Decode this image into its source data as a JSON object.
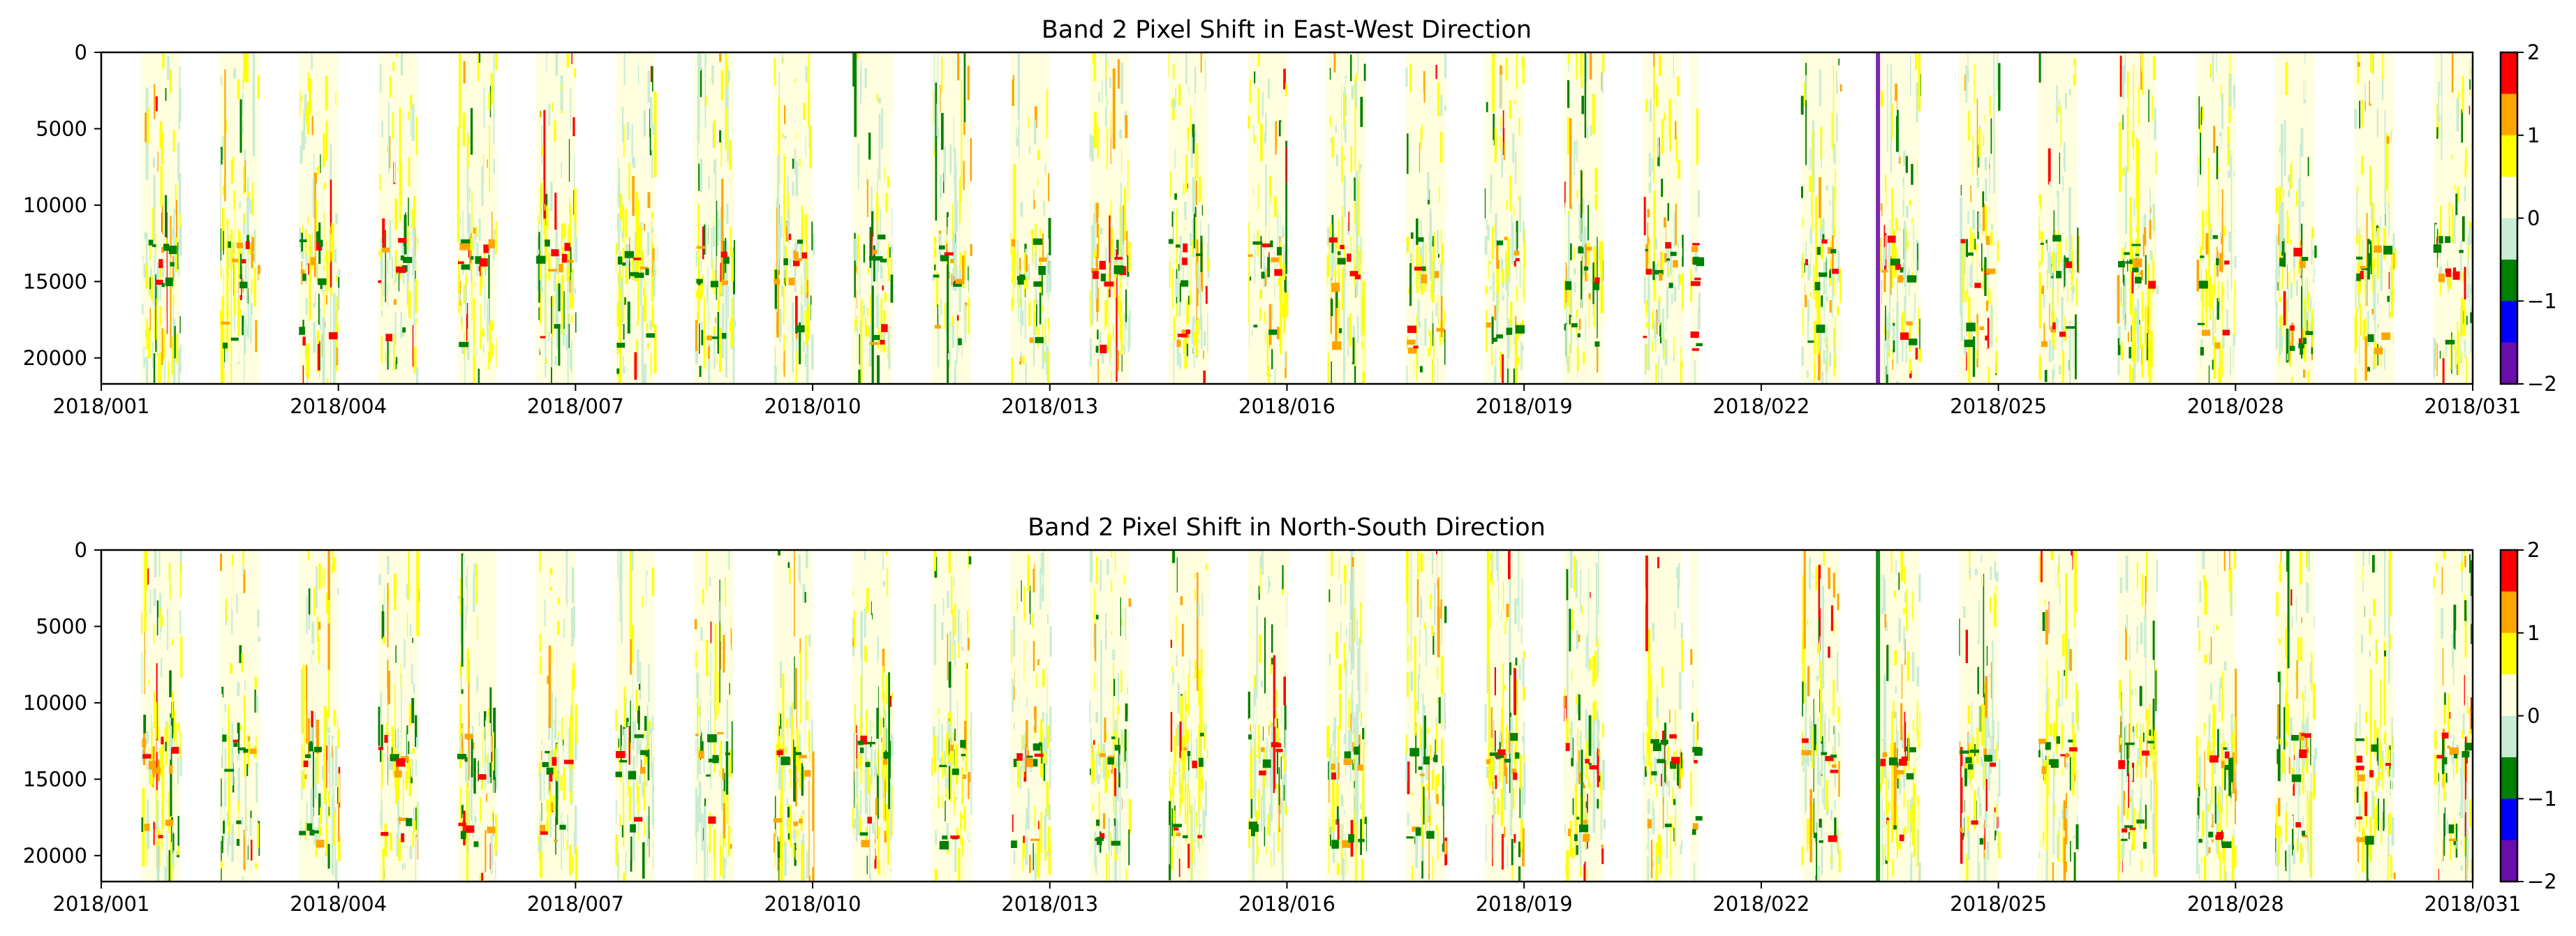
{
  "chart_data": [
    {
      "type": "heatmap",
      "title": "Band 2 Pixel Shift in East-West Direction",
      "xlabel": "",
      "ylabel": "",
      "x_ticks": [
        "2018/001",
        "2018/004",
        "2018/007",
        "2018/010",
        "2018/013",
        "2018/016",
        "2018/019",
        "2018/022",
        "2018/025",
        "2018/028",
        "2018/031"
      ],
      "x_range_days": [
        1,
        31
      ],
      "y_ticks": [
        0,
        5000,
        10000,
        15000,
        20000
      ],
      "y_range": [
        0,
        21700
      ],
      "y_inverted": true,
      "day_bands": [
        {
          "day": 1,
          "start": 1.5,
          "end": 2.0
        },
        {
          "day": 2,
          "start": 2.5,
          "end": 3.0
        },
        {
          "day": 3,
          "start": 3.5,
          "end": 4.0
        },
        {
          "day": 4,
          "start": 4.5,
          "end": 5.0
        },
        {
          "day": 5,
          "start": 5.5,
          "end": 6.0
        },
        {
          "day": 6,
          "start": 6.5,
          "end": 7.0
        },
        {
          "day": 7,
          "start": 7.5,
          "end": 8.0
        },
        {
          "day": 8,
          "start": 8.5,
          "end": 9.0
        },
        {
          "day": 9,
          "start": 9.5,
          "end": 10.0
        },
        {
          "day": 10,
          "start": 10.5,
          "end": 11.0
        },
        {
          "day": 11,
          "start": 11.5,
          "end": 12.0
        },
        {
          "day": 12,
          "start": 12.5,
          "end": 13.0
        },
        {
          "day": 13,
          "start": 13.5,
          "end": 14.0
        },
        {
          "day": 14,
          "start": 14.5,
          "end": 15.0
        },
        {
          "day": 15,
          "start": 15.5,
          "end": 16.0
        },
        {
          "day": 16,
          "start": 16.5,
          "end": 17.0
        },
        {
          "day": 17,
          "start": 17.5,
          "end": 18.0
        },
        {
          "day": 18,
          "start": 18.5,
          "end": 19.0
        },
        {
          "day": 19,
          "start": 19.5,
          "end": 20.0
        },
        {
          "day": 20,
          "start": 20.5,
          "end": 21.0
        },
        {
          "day": 21,
          "start": 21.1,
          "end": 21.2
        },
        {
          "day": 22,
          "start": 22.5,
          "end": 23.0
        },
        {
          "day": 23,
          "start": 23.5,
          "end": 24.0
        },
        {
          "day": 24,
          "start": 24.5,
          "end": 25.0
        },
        {
          "day": 25,
          "start": 25.5,
          "end": 26.0
        },
        {
          "day": 26,
          "start": 26.5,
          "end": 27.0
        },
        {
          "day": 27,
          "start": 27.5,
          "end": 28.0
        },
        {
          "day": 28,
          "start": 28.5,
          "end": 29.0
        },
        {
          "day": 29,
          "start": 29.5,
          "end": 30.0
        },
        {
          "day": 30,
          "start": 30.5,
          "end": 31.0
        }
      ],
      "colorbar": {
        "ticks": [
          2,
          1,
          0,
          -1,
          -2
        ],
        "levels": [
          2,
          1.5,
          1,
          0.5,
          0,
          -0.5,
          -1,
          -1.5,
          -2
        ],
        "colors": [
          "#ff0000",
          "#ffa500",
          "#ffff00",
          "#ffffe0",
          "#c8ecd4",
          "#008000",
          "#0000ff",
          "#6a0dad"
        ]
      },
      "features": {
        "hot_rows": [
          12800,
          14200,
          18500
        ],
        "anomaly_day": 23,
        "anomaly_min": -1.8
      }
    },
    {
      "type": "heatmap",
      "title": "Band 2 Pixel Shift in North-South Direction",
      "xlabel": "",
      "ylabel": "",
      "x_ticks": [
        "2018/001",
        "2018/004",
        "2018/007",
        "2018/010",
        "2018/013",
        "2018/016",
        "2018/019",
        "2018/022",
        "2018/025",
        "2018/028",
        "2018/031"
      ],
      "x_range_days": [
        1,
        31
      ],
      "y_ticks": [
        0,
        5000,
        10000,
        15000,
        20000
      ],
      "y_range": [
        0,
        21700
      ],
      "y_inverted": true,
      "day_bands": [
        {
          "day": 1,
          "start": 1.5,
          "end": 2.0
        },
        {
          "day": 2,
          "start": 2.5,
          "end": 3.0
        },
        {
          "day": 3,
          "start": 3.5,
          "end": 4.0
        },
        {
          "day": 4,
          "start": 4.5,
          "end": 5.0
        },
        {
          "day": 5,
          "start": 5.5,
          "end": 6.0
        },
        {
          "day": 6,
          "start": 6.5,
          "end": 7.0
        },
        {
          "day": 7,
          "start": 7.5,
          "end": 8.0
        },
        {
          "day": 8,
          "start": 8.5,
          "end": 9.0
        },
        {
          "day": 9,
          "start": 9.5,
          "end": 10.0
        },
        {
          "day": 10,
          "start": 10.5,
          "end": 11.0
        },
        {
          "day": 11,
          "start": 11.5,
          "end": 12.0
        },
        {
          "day": 12,
          "start": 12.5,
          "end": 13.0
        },
        {
          "day": 13,
          "start": 13.5,
          "end": 14.0
        },
        {
          "day": 14,
          "start": 14.5,
          "end": 15.0
        },
        {
          "day": 15,
          "start": 15.5,
          "end": 16.0
        },
        {
          "day": 16,
          "start": 16.5,
          "end": 17.0
        },
        {
          "day": 17,
          "start": 17.5,
          "end": 18.0
        },
        {
          "day": 18,
          "start": 18.5,
          "end": 19.0
        },
        {
          "day": 19,
          "start": 19.5,
          "end": 20.0
        },
        {
          "day": 20,
          "start": 20.5,
          "end": 21.0
        },
        {
          "day": 21,
          "start": 21.1,
          "end": 21.2
        },
        {
          "day": 22,
          "start": 22.5,
          "end": 23.0
        },
        {
          "day": 23,
          "start": 23.5,
          "end": 24.0
        },
        {
          "day": 24,
          "start": 24.5,
          "end": 25.0
        },
        {
          "day": 25,
          "start": 25.5,
          "end": 26.0
        },
        {
          "day": 26,
          "start": 26.5,
          "end": 27.0
        },
        {
          "day": 27,
          "start": 27.5,
          "end": 28.0
        },
        {
          "day": 28,
          "start": 28.5,
          "end": 29.0
        },
        {
          "day": 29,
          "start": 29.5,
          "end": 30.0
        },
        {
          "day": 30,
          "start": 30.5,
          "end": 31.0
        }
      ],
      "colorbar": {
        "ticks": [
          2,
          1,
          0,
          -1,
          -2
        ],
        "levels": [
          2,
          1.5,
          1,
          0.5,
          0,
          -0.5,
          -1,
          -1.5,
          -2
        ],
        "colors": [
          "#ff0000",
          "#ffa500",
          "#ffff00",
          "#ffffe0",
          "#c8ecd4",
          "#008000",
          "#0000ff",
          "#6a0dad"
        ]
      },
      "features": {
        "hot_rows": [
          12800,
          13800,
          18300
        ],
        "anomaly_day": 23,
        "anomaly_min": -0.8
      }
    }
  ]
}
